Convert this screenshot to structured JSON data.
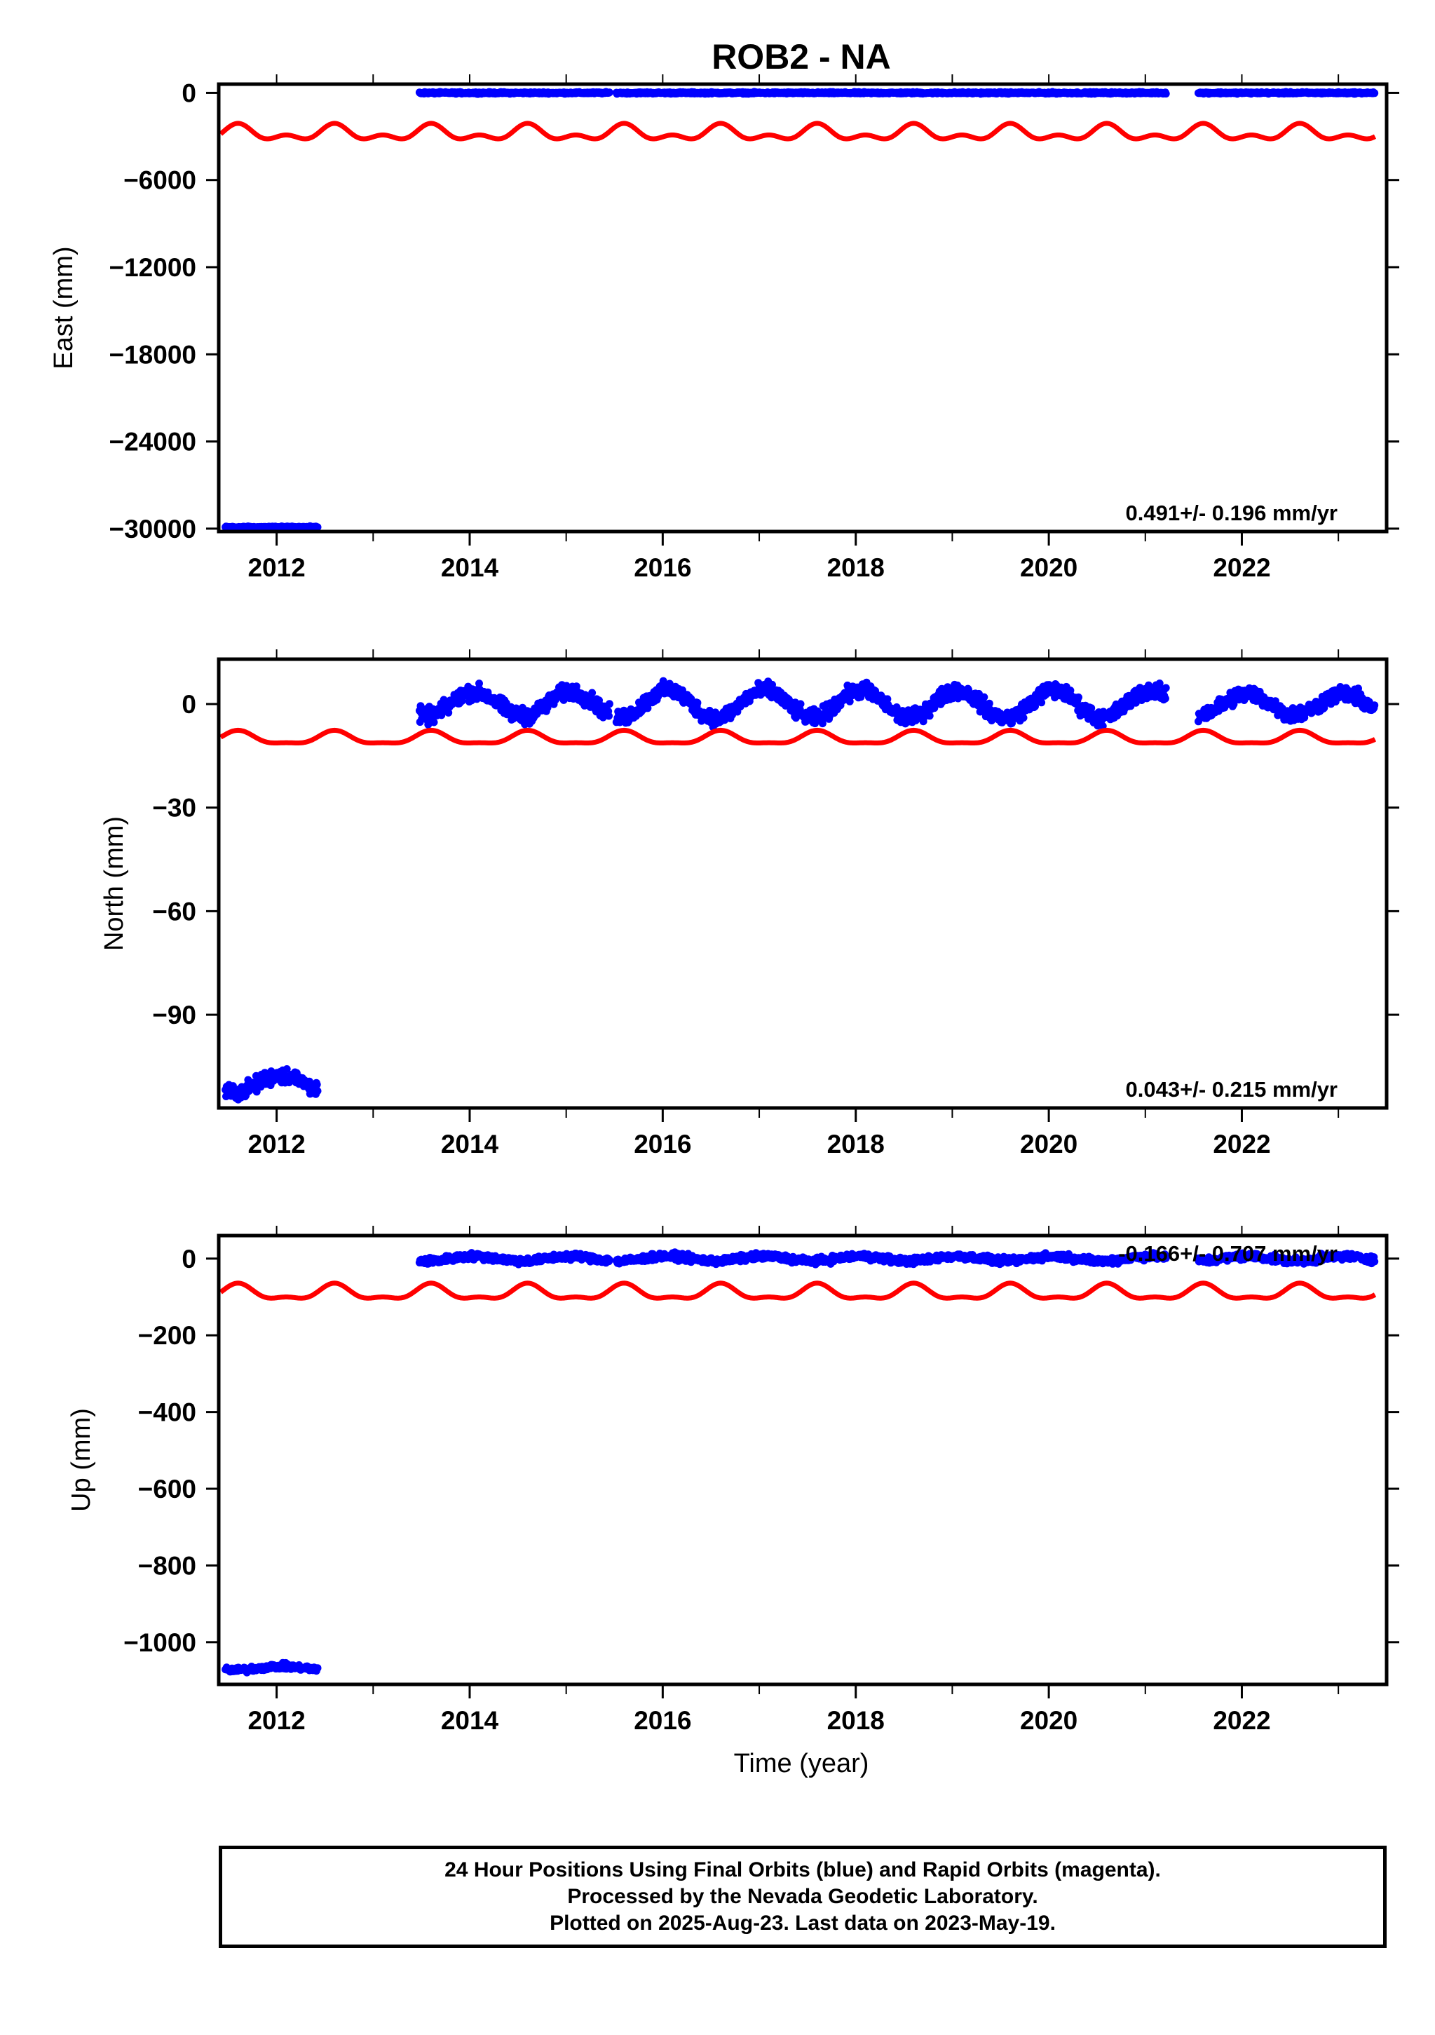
{
  "title": "ROB2 - NA",
  "xlabel": "Time (year)",
  "colors": {
    "final": "#0000ff",
    "model": "#ff0000",
    "frame": "#000000"
  },
  "chart_data": [
    {
      "type": "scatter",
      "ylabel": "East (mm)",
      "xlim": [
        2011.4,
        2023.5
      ],
      "ylim": [
        -30200,
        600
      ],
      "xticks": [
        2012,
        2014,
        2016,
        2018,
        2020,
        2022
      ],
      "yticks": [
        0,
        -6000,
        -12000,
        -18000,
        -24000,
        -30000
      ],
      "ytick_labels": [
        "0",
        "−6000",
        "−12000",
        "−18000",
        "−24000",
        "−30000"
      ],
      "rate_label": "0.491+/- 0.196 mm/yr",
      "series": [
        {
          "color": "blue",
          "segments": [
            {
              "start": 2011.47,
              "end": 2012.43,
              "level": -29900,
              "amp": 0,
              "noise": 40
            },
            {
              "start": 2013.48,
              "end": 2015.45,
              "level": 0,
              "amp": 0,
              "noise": 40
            },
            {
              "start": 2015.52,
              "end": 2021.22,
              "level": 0,
              "amp": 0,
              "noise": 40
            },
            {
              "start": 2021.55,
              "end": 2023.38,
              "level": 0,
              "amp": 0,
              "noise": 40
            }
          ]
        },
        {
          "color": "red",
          "curve": {
            "start": 2011.42,
            "end": 2023.38,
            "level": -2800,
            "amp": 400,
            "semi_amp": 300
          }
        }
      ]
    },
    {
      "type": "scatter",
      "ylabel": "North (mm)",
      "xlim": [
        2011.4,
        2023.5
      ],
      "ylim": [
        -117,
        13
      ],
      "xticks": [
        2012,
        2014,
        2016,
        2018,
        2020,
        2022
      ],
      "yticks": [
        0,
        -30,
        -60,
        -90
      ],
      "ytick_labels": [
        "0",
        "−30",
        "−60",
        "−90"
      ],
      "rate_label": "0.043+/- 0.215 mm/yr",
      "series": [
        {
          "color": "blue",
          "segments": [
            {
              "start": 2011.47,
              "end": 2012.43,
              "level": -110,
              "amp": 2.5,
              "noise": 1.6
            },
            {
              "start": 2013.48,
              "end": 2015.45,
              "level": 0,
              "amp": 3.5,
              "noise": 1.6
            },
            {
              "start": 2015.52,
              "end": 2021.22,
              "level": 0,
              "amp": 4,
              "noise": 1.6
            },
            {
              "start": 2021.55,
              "end": 2023.38,
              "level": 0,
              "amp": 3,
              "noise": 1.6
            }
          ]
        },
        {
          "color": "red",
          "curve": {
            "start": 2011.42,
            "end": 2023.38,
            "level": -10,
            "amp": 1.8,
            "semi_amp": 0.6
          }
        }
      ]
    },
    {
      "type": "scatter",
      "ylabel": "Up (mm)",
      "xlim": [
        2011.4,
        2023.5
      ],
      "ylim": [
        -1110,
        60
      ],
      "xticks": [
        2012,
        2014,
        2016,
        2018,
        2020,
        2022
      ],
      "yticks": [
        0,
        -200,
        -400,
        -600,
        -800,
        -1000
      ],
      "ytick_labels": [
        "0",
        "−200",
        "−400",
        "−600",
        "−800",
        "−1000"
      ],
      "rate_label": "-0.166+/- 0.707 mm/yr",
      "series": [
        {
          "color": "blue",
          "segments": [
            {
              "start": 2011.47,
              "end": 2012.43,
              "level": -1068,
              "amp": 5,
              "noise": 5
            },
            {
              "start": 2013.48,
              "end": 2015.45,
              "level": 0,
              "amp": 6,
              "noise": 6
            },
            {
              "start": 2015.52,
              "end": 2021.22,
              "level": 0,
              "amp": 6,
              "noise": 6
            },
            {
              "start": 2021.55,
              "end": 2023.38,
              "level": 0,
              "amp": 6,
              "noise": 6
            }
          ]
        },
        {
          "color": "red",
          "curve": {
            "start": 2011.42,
            "end": 2023.38,
            "level": -90,
            "amp": 18,
            "semi_amp": 8
          }
        }
      ]
    }
  ],
  "caption": [
    "24 Hour Positions Using Final Orbits (blue) and Rapid Orbits (magenta).",
    "Processed by the Nevada Geodetic Laboratory.",
    "Plotted on 2025-Aug-23. Last data on 2023-May-19."
  ]
}
